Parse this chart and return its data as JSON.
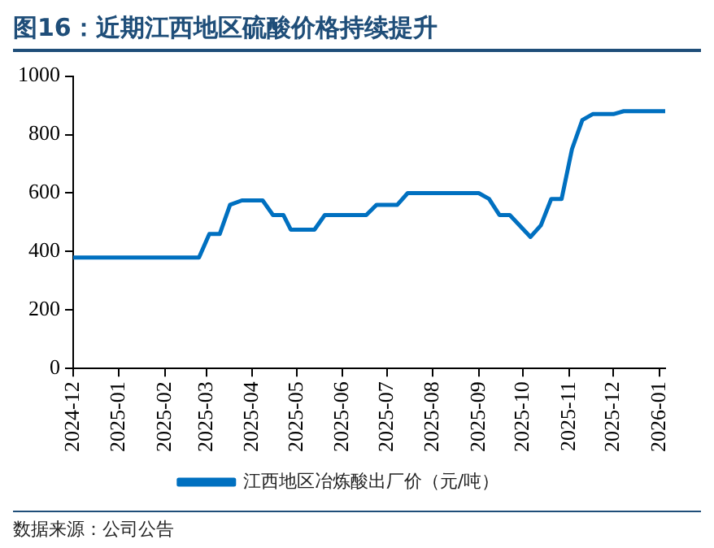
{
  "chart_data": {
    "type": "line",
    "title": "图16：近期江西地区硫酸价格持续提升",
    "x": [
      "2024-12-01",
      "2025-02-24",
      "2025-03-03",
      "2025-03-10",
      "2025-03-17",
      "2025-03-25",
      "2025-04-08",
      "2025-04-15",
      "2025-04-22",
      "2025-04-27",
      "2025-05-13",
      "2025-05-20",
      "2025-06-17",
      "2025-06-24",
      "2025-07-08",
      "2025-07-15",
      "2025-09-01",
      "2025-09-08",
      "2025-09-15",
      "2025-09-22",
      "2025-10-06",
      "2025-10-13",
      "2025-10-20",
      "2025-10-27",
      "2025-11-03",
      "2025-11-10",
      "2025-11-17",
      "2025-12-01",
      "2025-12-08",
      "2026-01-05"
    ],
    "series": [
      {
        "name": "江西地区冶炼酸出厂价（元/吨）",
        "color": "#0070c0",
        "values": [
          380,
          380,
          460,
          460,
          560,
          575,
          575,
          525,
          525,
          475,
          475,
          525,
          525,
          560,
          560,
          600,
          600,
          580,
          525,
          525,
          450,
          490,
          580,
          580,
          750,
          850,
          870,
          870,
          880,
          880
        ]
      }
    ],
    "xlim": [
      "2024-12-01",
      "2026-01-05"
    ],
    "xticks": [
      "2024-12",
      "2025-01",
      "2025-02",
      "2025-03",
      "2025-04",
      "2025-05",
      "2025-06",
      "2025-07",
      "2025-08",
      "2025-09",
      "2025-10",
      "2025-11",
      "2025-12",
      "2026-01"
    ],
    "ylim": [
      0,
      1000
    ],
    "yticks": [
      0,
      200,
      400,
      600,
      800,
      1000
    ],
    "grid": false,
    "legend": "bottom",
    "marker": "none",
    "line_style": "solid",
    "annotations": [
      "数据来源：公司公告"
    ]
  }
}
